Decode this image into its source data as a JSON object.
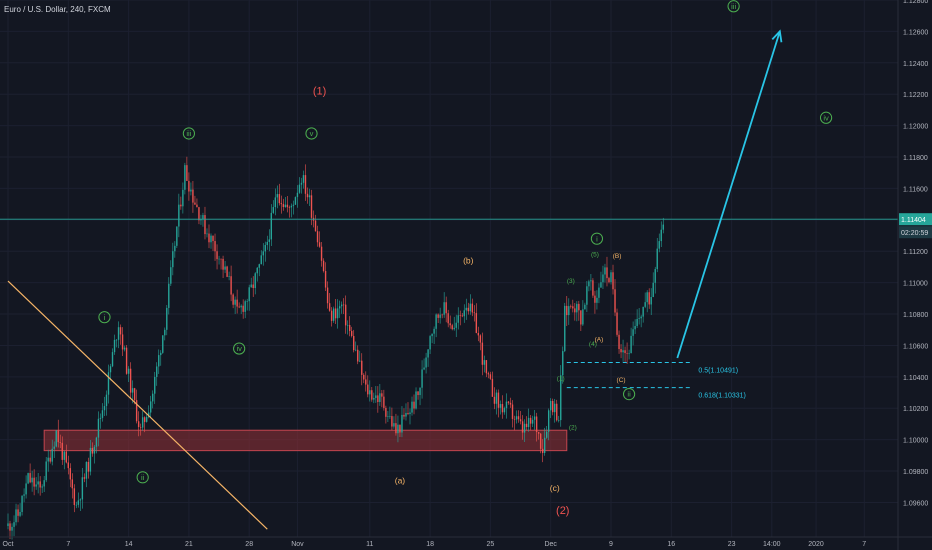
{
  "title": "Euro / U.S. Dollar, 240, FXCM",
  "colors": {
    "background": "#131722",
    "up": "#26a69a",
    "down": "#ef5350",
    "price_line": "#26a69a",
    "projection": "#29c5e6",
    "trendline": "#f5b467",
    "zone_fill": "#8a2e36",
    "zone_stroke": "#c2454f",
    "fib": "#29c5e6",
    "wave_green": "#4caf50",
    "wave_red": "#ef5350",
    "wave_orange": "#f5b467",
    "axis_text": "#b2b5be"
  },
  "chart_data": {
    "type": "candlestick",
    "title": "Euro / U.S. Dollar, 240, FXCM",
    "symbol": "EURUSD",
    "timeframe": "240",
    "source": "FXCM",
    "ylim": [
      1.0938,
      1.128
    ],
    "y_ticks": [
      1.096,
      1.098,
      1.1,
      1.102,
      1.104,
      1.106,
      1.108,
      1.11,
      1.112,
      1.114,
      1.116,
      1.118,
      1.12,
      1.122,
      1.124,
      1.126,
      1.128
    ],
    "y_tick_labels": [
      "1.09600",
      "1.09800",
      "1.10000",
      "1.10200",
      "1.10400",
      "1.10600",
      "1.10800",
      "1.11000",
      "1.11200",
      "1.11400",
      "1.11600",
      "1.11800",
      "1.12000",
      "1.12200",
      "1.12400",
      "1.12600",
      "1.12800"
    ],
    "x_ticks": [
      {
        "bar": 0,
        "label": "Oct"
      },
      {
        "bar": 30,
        "label": "7"
      },
      {
        "bar": 60,
        "label": "14"
      },
      {
        "bar": 90,
        "label": "21"
      },
      {
        "bar": 120,
        "label": "28"
      },
      {
        "bar": 144,
        "label": "Nov"
      },
      {
        "bar": 180,
        "label": "11"
      },
      {
        "bar": 210,
        "label": "18"
      },
      {
        "bar": 240,
        "label": "25"
      },
      {
        "bar": 270,
        "label": "Dec"
      },
      {
        "bar": 300,
        "label": "9"
      },
      {
        "bar": 330,
        "label": "16"
      },
      {
        "bar": 360,
        "label": "23"
      },
      {
        "bar": 380,
        "label": "14:00"
      },
      {
        "bar": 402,
        "label": "2020"
      },
      {
        "bar": 426,
        "label": "7"
      }
    ],
    "keypoints": [
      {
        "bar": 0,
        "price": 1.0945
      },
      {
        "bar": 5,
        "price": 1.0952
      },
      {
        "bar": 10,
        "price": 1.0975
      },
      {
        "bar": 16,
        "price": 1.0968
      },
      {
        "bar": 24,
        "price": 1.1005
      },
      {
        "bar": 30,
        "price": 1.0978
      },
      {
        "bar": 34,
        "price": 1.0958
      },
      {
        "bar": 40,
        "price": 1.0985
      },
      {
        "bar": 48,
        "price": 1.1025
      },
      {
        "bar": 55,
        "price": 1.1075
      },
      {
        "bar": 60,
        "price": 1.104
      },
      {
        "bar": 66,
        "price": 1.1005
      },
      {
        "bar": 72,
        "price": 1.103
      },
      {
        "bar": 78,
        "price": 1.1075
      },
      {
        "bar": 84,
        "price": 1.1135
      },
      {
        "bar": 88,
        "price": 1.1172
      },
      {
        "bar": 92,
        "price": 1.1155
      },
      {
        "bar": 98,
        "price": 1.1135
      },
      {
        "bar": 104,
        "price": 1.112
      },
      {
        "bar": 110,
        "price": 1.11
      },
      {
        "bar": 114,
        "price": 1.108
      },
      {
        "bar": 120,
        "price": 1.1092
      },
      {
        "bar": 128,
        "price": 1.112
      },
      {
        "bar": 134,
        "price": 1.1158
      },
      {
        "bar": 140,
        "price": 1.1145
      },
      {
        "bar": 146,
        "price": 1.1168
      },
      {
        "bar": 150,
        "price": 1.1152
      },
      {
        "bar": 155,
        "price": 1.1125
      },
      {
        "bar": 160,
        "price": 1.1078
      },
      {
        "bar": 166,
        "price": 1.1085
      },
      {
        "bar": 172,
        "price": 1.106
      },
      {
        "bar": 178,
        "price": 1.1032
      },
      {
        "bar": 186,
        "price": 1.1025
      },
      {
        "bar": 193,
        "price": 1.1005
      },
      {
        "bar": 198,
        "price": 1.1015
      },
      {
        "bar": 204,
        "price": 1.1028
      },
      {
        "bar": 210,
        "price": 1.1068
      },
      {
        "bar": 216,
        "price": 1.1085
      },
      {
        "bar": 222,
        "price": 1.107
      },
      {
        "bar": 228,
        "price": 1.1088
      },
      {
        "bar": 233,
        "price": 1.1072
      },
      {
        "bar": 238,
        "price": 1.104
      },
      {
        "bar": 244,
        "price": 1.1022
      },
      {
        "bar": 250,
        "price": 1.1018
      },
      {
        "bar": 256,
        "price": 1.1006
      },
      {
        "bar": 262,
        "price": 1.1012
      },
      {
        "bar": 266,
        "price": 1.0995
      },
      {
        "bar": 270,
        "price": 1.1025
      },
      {
        "bar": 274,
        "price": 1.1015
      },
      {
        "bar": 277,
        "price": 1.108
      },
      {
        "bar": 281,
        "price": 1.1088
      },
      {
        "bar": 285,
        "price": 1.1078
      },
      {
        "bar": 289,
        "price": 1.11
      },
      {
        "bar": 292,
        "price": 1.1088
      },
      {
        "bar": 296,
        "price": 1.1108
      },
      {
        "bar": 300,
        "price": 1.1102
      },
      {
        "bar": 304,
        "price": 1.1062
      },
      {
        "bar": 308,
        "price": 1.1055
      },
      {
        "bar": 312,
        "price": 1.107
      },
      {
        "bar": 316,
        "price": 1.1085
      },
      {
        "bar": 320,
        "price": 1.1092
      },
      {
        "bar": 323,
        "price": 1.1125
      },
      {
        "bar": 326,
        "price": 1.114
      }
    ],
    "current_price": 1.11404,
    "current_price_label": "1.11404",
    "countdown_label": "02:20:59",
    "support_zone": {
      "bar_start": 18,
      "bar_end": 278,
      "price_top": 1.1006,
      "price_bottom": 1.0993
    },
    "trendline": {
      "start": {
        "bar": 0,
        "price": 1.1101
      },
      "end": {
        "bar": 129,
        "price": 1.0943
      }
    },
    "projection_arrow": {
      "start": {
        "bar": 333,
        "price": 1.1052
      },
      "end": {
        "bar": 384,
        "price": 1.126
      }
    },
    "fib_levels": [
      {
        "price": 1.10491,
        "label": "0.5(1.10491)",
        "bar_start": 278,
        "bar_end": 340
      },
      {
        "price": 1.10331,
        "label": "0.618(1.10331)",
        "bar_start": 278,
        "bar_end": 340
      }
    ],
    "wave_labels": [
      {
        "text": "i",
        "circled": true,
        "bar": 48,
        "price": 1.1078,
        "color": "wave_green"
      },
      {
        "text": "ii",
        "circled": true,
        "bar": 67,
        "price": 1.0976,
        "color": "wave_green"
      },
      {
        "text": "iii",
        "circled": true,
        "bar": 90,
        "price": 1.1195,
        "color": "wave_green"
      },
      {
        "text": "iv",
        "circled": true,
        "bar": 115,
        "price": 1.1058,
        "color": "wave_green"
      },
      {
        "text": "v",
        "circled": true,
        "bar": 151,
        "price": 1.1195,
        "color": "wave_green"
      },
      {
        "text": "(1)",
        "circled": false,
        "bar": 155,
        "price": 1.1222,
        "color": "wave_red"
      },
      {
        "text": "(b)",
        "circled": false,
        "bar": 229,
        "price": 1.1114,
        "color": "wave_orange"
      },
      {
        "text": "(a)",
        "circled": false,
        "bar": 195,
        "price": 1.0974,
        "color": "wave_orange"
      },
      {
        "text": "(c)",
        "circled": false,
        "bar": 272,
        "price": 1.0969,
        "color": "wave_orange"
      },
      {
        "text": "(2)",
        "circled": false,
        "bar": 276,
        "price": 1.0955,
        "color": "wave_red"
      },
      {
        "text": "(1)",
        "circled": false,
        "bar": 275,
        "price": 1.1039,
        "color": "wave_green"
      },
      {
        "text": "(2)",
        "circled": false,
        "bar": 281,
        "price": 1.1008,
        "color": "wave_green"
      },
      {
        "text": "(3)",
        "circled": false,
        "bar": 280,
        "price": 1.1101,
        "color": "wave_green"
      },
      {
        "text": "(4)",
        "circled": false,
        "bar": 291,
        "price": 1.1061,
        "color": "wave_green"
      },
      {
        "text": "(5)",
        "circled": false,
        "bar": 292,
        "price": 1.1118,
        "color": "wave_green"
      },
      {
        "text": "i",
        "circled": true,
        "bar": 293,
        "price": 1.1128,
        "color": "wave_green"
      },
      {
        "text": "(A)",
        "circled": false,
        "bar": 294,
        "price": 1.1064,
        "color": "wave_orange"
      },
      {
        "text": "(B)",
        "circled": false,
        "bar": 303,
        "price": 1.1117,
        "color": "wave_orange"
      },
      {
        "text": "(C)",
        "circled": false,
        "bar": 305,
        "price": 1.1038,
        "color": "wave_orange"
      },
      {
        "text": "ii",
        "circled": true,
        "bar": 309,
        "price": 1.1029,
        "color": "wave_green"
      },
      {
        "text": "iii",
        "circled": true,
        "bar": 361,
        "price": 1.1276,
        "color": "wave_green"
      },
      {
        "text": "iv",
        "circled": true,
        "bar": 407,
        "price": 1.1205,
        "color": "wave_green"
      }
    ]
  }
}
